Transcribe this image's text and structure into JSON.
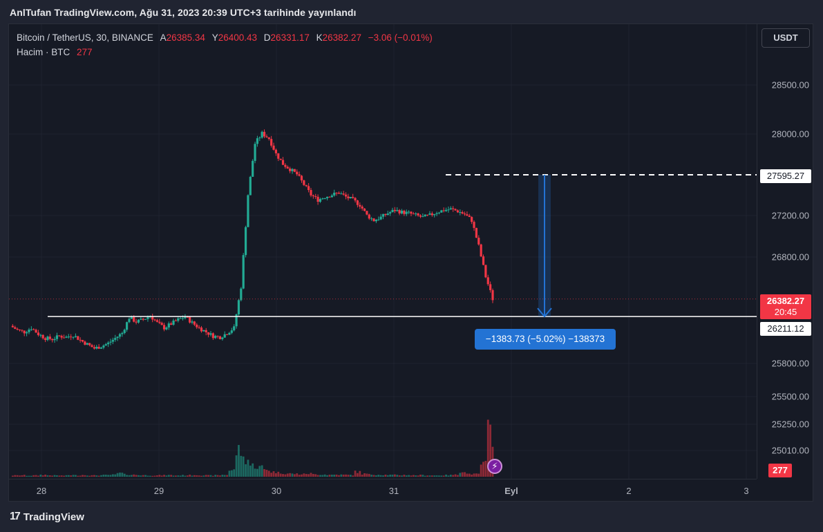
{
  "header": {
    "publisher": "AnlTufan TradingView.com, Ağu 31, 2023 20:39 UTC+3 tarihinde yayınlandı"
  },
  "legend": {
    "symbol": "Bitcoin / TetherUS, 30, BINANCE",
    "open_label": "A",
    "open": "26385.34",
    "high_label": "Y",
    "high": "26400.43",
    "low_label": "D",
    "low": "26331.17",
    "close_label": "K",
    "close": "26382.27",
    "change": "−3.06 (−0.01%)",
    "volume_label": "Hacim · BTC",
    "volume": "277"
  },
  "currency_button": "USDT",
  "price_axis": {
    "ticks": [
      "28500.00",
      "28000.00",
      "27200.00",
      "26800.00",
      "25800.00",
      "25500.00",
      "25250.00",
      "25010.00"
    ],
    "level_27595": "27595.27",
    "last_price": "26382.27",
    "countdown": "20:45",
    "level_26211": "26211.12",
    "volume_badge": "277"
  },
  "time_axis": {
    "ticks": [
      "28",
      "29",
      "30",
      "31",
      "Eyl",
      "2",
      "3"
    ]
  },
  "measure": {
    "label": "−1383.73 (−5.02%) −138373"
  },
  "footer": {
    "brand": "TradingView"
  },
  "colors": {
    "up": "#22ab94",
    "down": "#f23645",
    "measure": "#2373d4",
    "background": "#161a25"
  },
  "chart_data": {
    "type": "candlestick",
    "symbol": "Bitcoin / TetherUS",
    "interval": "30",
    "exchange": "BINANCE",
    "x_ticks": [
      "28",
      "29",
      "30",
      "31",
      "Eyl",
      "2",
      "3"
    ],
    "price_levels": {
      "drawn_high": 27595.27,
      "drawn_low": 26211.12,
      "last": 26382.27
    },
    "measured_move": {
      "change": -1383.73,
      "percent": -5.02,
      "ticks": -138373
    },
    "series": [
      {
        "name": "price",
        "close_path": [
          26120,
          26080,
          26060,
          26100,
          26040,
          26000,
          25990,
          26020,
          26010,
          26030,
          25980,
          25940,
          25900,
          25920,
          25950,
          26000,
          26050,
          26200,
          26160,
          26180,
          26220,
          26150,
          26100,
          26140,
          26180,
          26210,
          26150,
          26100,
          26060,
          26020,
          26010,
          26050,
          26100,
          26500,
          27400,
          27900,
          28000,
          27950,
          27800,
          27700,
          27650,
          27600,
          27500,
          27400,
          27350,
          27380,
          27400,
          27420,
          27380,
          27350,
          27300,
          27200,
          27150,
          27180,
          27220,
          27250,
          27230,
          27220,
          27200,
          27180,
          27200,
          27230,
          27250,
          27260,
          27240,
          27210,
          27150,
          26900,
          26600,
          26382
        ]
      },
      {
        "name": "volume",
        "values": [
          10,
          8,
          9,
          7,
          8,
          12,
          9,
          8,
          7,
          10,
          9,
          11,
          8,
          9,
          10,
          12,
          22,
          14,
          12,
          10,
          9,
          8,
          9,
          10,
          8,
          9,
          10,
          11,
          9,
          8,
          9,
          12,
          40,
          160,
          110,
          70,
          60,
          45,
          30,
          25,
          20,
          18,
          16,
          20,
          15,
          14,
          12,
          13,
          12,
          11,
          30,
          18,
          14,
          13,
          12,
          11,
          10,
          11,
          9,
          10,
          9,
          8,
          9,
          10,
          12,
          36,
          18,
          16,
          80,
          277
        ]
      }
    ]
  }
}
